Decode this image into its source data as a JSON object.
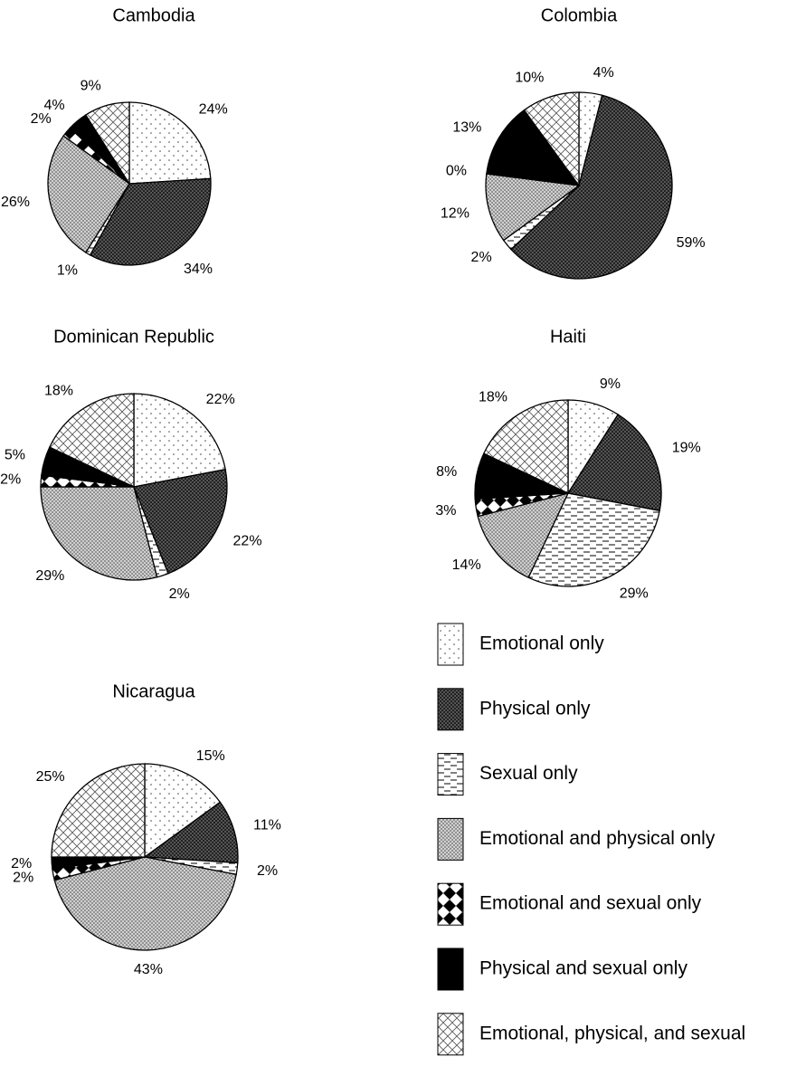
{
  "chart_data": [
    {
      "type": "pie",
      "title": "Cambodia",
      "categories": [
        "Emotional only",
        "Physical only",
        "Sexual only",
        "Emotional and physical only",
        "Emotional and sexual only",
        "Physical and sexual only",
        "Emotional, physical, and sexual"
      ],
      "values": [
        24,
        34,
        1,
        26,
        2,
        4,
        9
      ],
      "value_labels": [
        "24%",
        "34%",
        "1%",
        "26%",
        "2%",
        "4%",
        "9%"
      ]
    },
    {
      "type": "pie",
      "title": "Colombia",
      "categories": [
        "Emotional only",
        "Physical only",
        "Sexual only",
        "Emotional and physical only",
        "Emotional and sexual only",
        "Physical and sexual only",
        "Emotional, physical, and sexual"
      ],
      "values": [
        4,
        59,
        2,
        12,
        0,
        13,
        10
      ],
      "value_labels": [
        "4%",
        "59%",
        "2%",
        "12%",
        "0%",
        "13%",
        "10%"
      ]
    },
    {
      "type": "pie",
      "title": "Dominican Republic",
      "categories": [
        "Emotional only",
        "Physical only",
        "Sexual only",
        "Emotional and physical only",
        "Emotional and sexual only",
        "Physical and sexual only",
        "Emotional, physical, and sexual"
      ],
      "values": [
        22,
        22,
        2,
        29,
        2,
        5,
        18
      ],
      "value_labels": [
        "22%",
        "22%",
        "2%",
        "29%",
        "2%",
        "5%",
        "18%"
      ]
    },
    {
      "type": "pie",
      "title": "Haiti",
      "categories": [
        "Emotional only",
        "Physical only",
        "Sexual only",
        "Emotional and physical only",
        "Emotional and sexual only",
        "Physical and sexual only",
        "Emotional, physical, and sexual"
      ],
      "values": [
        9,
        19,
        29,
        14,
        3,
        8,
        18
      ],
      "value_labels": [
        "9%",
        "19%",
        "29%",
        "14%",
        "3%",
        "8%",
        "18%"
      ]
    },
    {
      "type": "pie",
      "title": "Nicaragua",
      "categories": [
        "Emotional only",
        "Physical only",
        "Sexual only",
        "Emotional and physical only",
        "Emotional and sexual only",
        "Physical and sexual only",
        "Emotional, physical, and sexual"
      ],
      "values": [
        15,
        11,
        2,
        43,
        2,
        2,
        25
      ],
      "value_labels": [
        "15%",
        "11%",
        "2%",
        "43%",
        "2%",
        "2%",
        "25%"
      ]
    }
  ]
}
